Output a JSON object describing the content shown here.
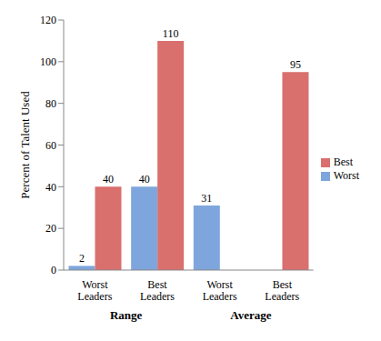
{
  "chart_data": {
    "type": "bar",
    "categories": [
      "Worst Leaders",
      "Best Leaders",
      "Worst Leaders",
      "Best Leaders"
    ],
    "category_groups": [
      "Range",
      "Range",
      "Average",
      "Average"
    ],
    "ylabel": "Percent of Talent Used",
    "series": [
      {
        "name": "Worst",
        "color": "#7fa6dc",
        "values": [
          2,
          40,
          31,
          null
        ]
      },
      {
        "name": "Best",
        "color": "#d9706e",
        "values": [
          40,
          110,
          null,
          95
        ]
      }
    ],
    "ylim": [
      0,
      120
    ],
    "yticks": [
      0,
      20,
      40,
      60,
      80,
      100,
      120
    ],
    "grid": false,
    "legend": "right",
    "data_labels": true
  }
}
